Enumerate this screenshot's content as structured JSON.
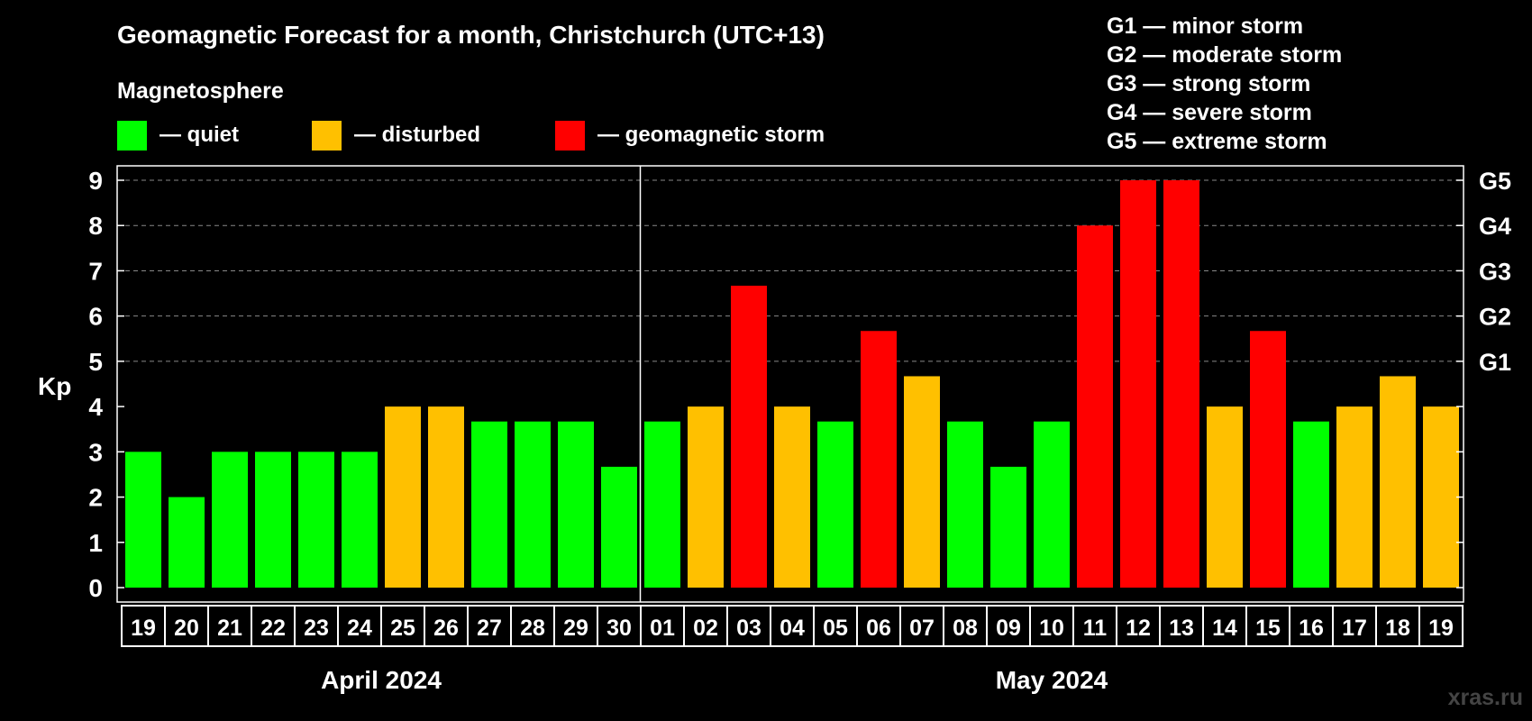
{
  "chart_data": {
    "type": "bar",
    "title": "Geomagnetic Forecast for a month, Christchurch (UTC+13)",
    "ylabel": "Kp",
    "ylim": [
      0,
      9
    ],
    "y_ticks": [
      "0",
      "1",
      "2",
      "3",
      "4",
      "5",
      "6",
      "7",
      "8",
      "9"
    ],
    "legend": {
      "title": "Magnetosphere",
      "items": [
        {
          "label": "— quiet",
          "color": "#00ff00"
        },
        {
          "label": "— disturbed",
          "color": "#ffc000"
        },
        {
          "label": "— geomagnetic storm",
          "color": "#ff0000"
        }
      ]
    },
    "g_scale_legend": [
      "G1 — minor storm",
      "G2 — moderate storm",
      "G3 — strong storm",
      "G4 — severe storm",
      "G5 — extreme storm"
    ],
    "right_axis": [
      {
        "kp": 5,
        "label": "G1"
      },
      {
        "kp": 6,
        "label": "G2"
      },
      {
        "kp": 7,
        "label": "G3"
      },
      {
        "kp": 8,
        "label": "G4"
      },
      {
        "kp": 9,
        "label": "G5"
      }
    ],
    "months": [
      {
        "label": "April 2024",
        "start": 0,
        "end": 11
      },
      {
        "label": "May 2024",
        "start": 12,
        "end": 30
      }
    ],
    "categories": [
      "19",
      "20",
      "21",
      "22",
      "23",
      "24",
      "25",
      "26",
      "27",
      "28",
      "29",
      "30",
      "01",
      "02",
      "03",
      "04",
      "05",
      "06",
      "07",
      "08",
      "09",
      "10",
      "11",
      "12",
      "13",
      "14",
      "15",
      "16",
      "17",
      "18",
      "19"
    ],
    "values": [
      3,
      2,
      3,
      3,
      3,
      3,
      4,
      4,
      3.67,
      3.67,
      3.67,
      2.67,
      3.67,
      4,
      6.67,
      4,
      3.67,
      5.67,
      4.67,
      3.67,
      2.67,
      3.67,
      8,
      9,
      9,
      4,
      5.67,
      3.67,
      4,
      4.67,
      4
    ],
    "status": [
      "quiet",
      "quiet",
      "quiet",
      "quiet",
      "quiet",
      "quiet",
      "disturbed",
      "disturbed",
      "quiet",
      "quiet",
      "quiet",
      "quiet",
      "quiet",
      "disturbed",
      "storm",
      "disturbed",
      "quiet",
      "storm",
      "disturbed",
      "quiet",
      "quiet",
      "quiet",
      "storm",
      "storm",
      "storm",
      "disturbed",
      "storm",
      "quiet",
      "disturbed",
      "disturbed",
      "disturbed"
    ],
    "colors": {
      "quiet": "#00ff00",
      "disturbed": "#ffc000",
      "storm": "#ff0000"
    }
  },
  "watermark": "xras.ru"
}
